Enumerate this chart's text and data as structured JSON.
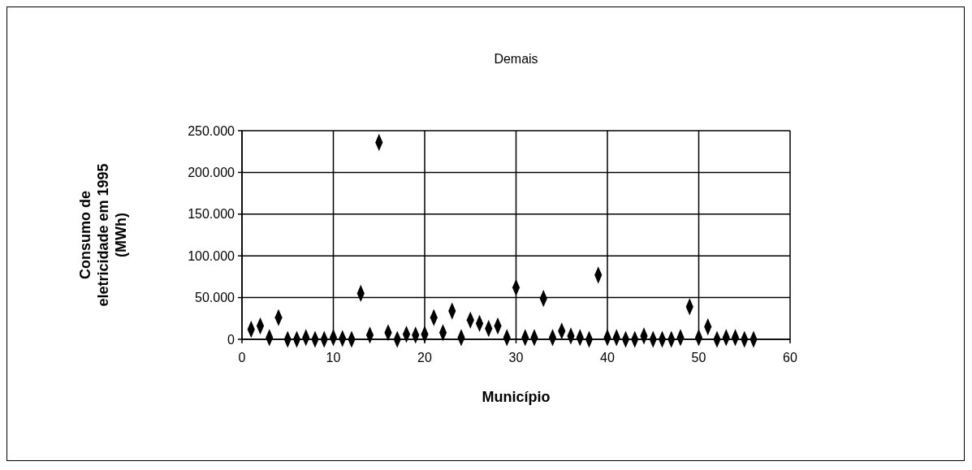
{
  "chart_data": {
    "type": "scatter",
    "title": "Demais",
    "xlabel": "Município",
    "ylabel": "Consumo de eletricidade em 1995 (MWh)",
    "x": [
      1,
      2,
      3,
      4,
      5,
      6,
      7,
      8,
      9,
      10,
      11,
      12,
      13,
      14,
      15,
      16,
      17,
      18,
      19,
      20,
      21,
      22,
      23,
      24,
      25,
      26,
      27,
      28,
      29,
      30,
      31,
      32,
      33,
      34,
      35,
      36,
      37,
      38,
      39,
      40,
      41,
      42,
      43,
      44,
      45,
      46,
      47,
      48,
      49,
      50,
      51,
      52,
      53,
      54,
      55,
      56
    ],
    "values": [
      12000,
      16000,
      2000,
      26000,
      0,
      0,
      2000,
      0,
      0,
      2000,
      1000,
      0,
      55000,
      5000,
      236000,
      8000,
      0,
      6000,
      5000,
      6000,
      26000,
      8000,
      34000,
      2000,
      23000,
      19000,
      13000,
      16000,
      2000,
      62000,
      2000,
      2000,
      49000,
      2000,
      10000,
      4000,
      2000,
      0,
      77000,
      2000,
      2000,
      0,
      0,
      4000,
      0,
      0,
      0,
      2000,
      39000,
      2000,
      15000,
      0,
      2000,
      2000,
      0,
      0
    ],
    "color": "#000000",
    "marker": "diamond",
    "grid": true,
    "xlim": [
      0,
      60
    ],
    "xticks": [
      0,
      10,
      20,
      30,
      40,
      50,
      60
    ],
    "ylim": [
      0,
      250000
    ],
    "yticks": [
      {
        "value": 0,
        "label": "0"
      },
      {
        "value": 50000,
        "label": "50.000"
      },
      {
        "value": 100000,
        "label": "100.000"
      },
      {
        "value": 150000,
        "label": "150.000"
      },
      {
        "value": 200000,
        "label": "200.000"
      },
      {
        "value": 250000,
        "label": "250.000"
      }
    ]
  }
}
